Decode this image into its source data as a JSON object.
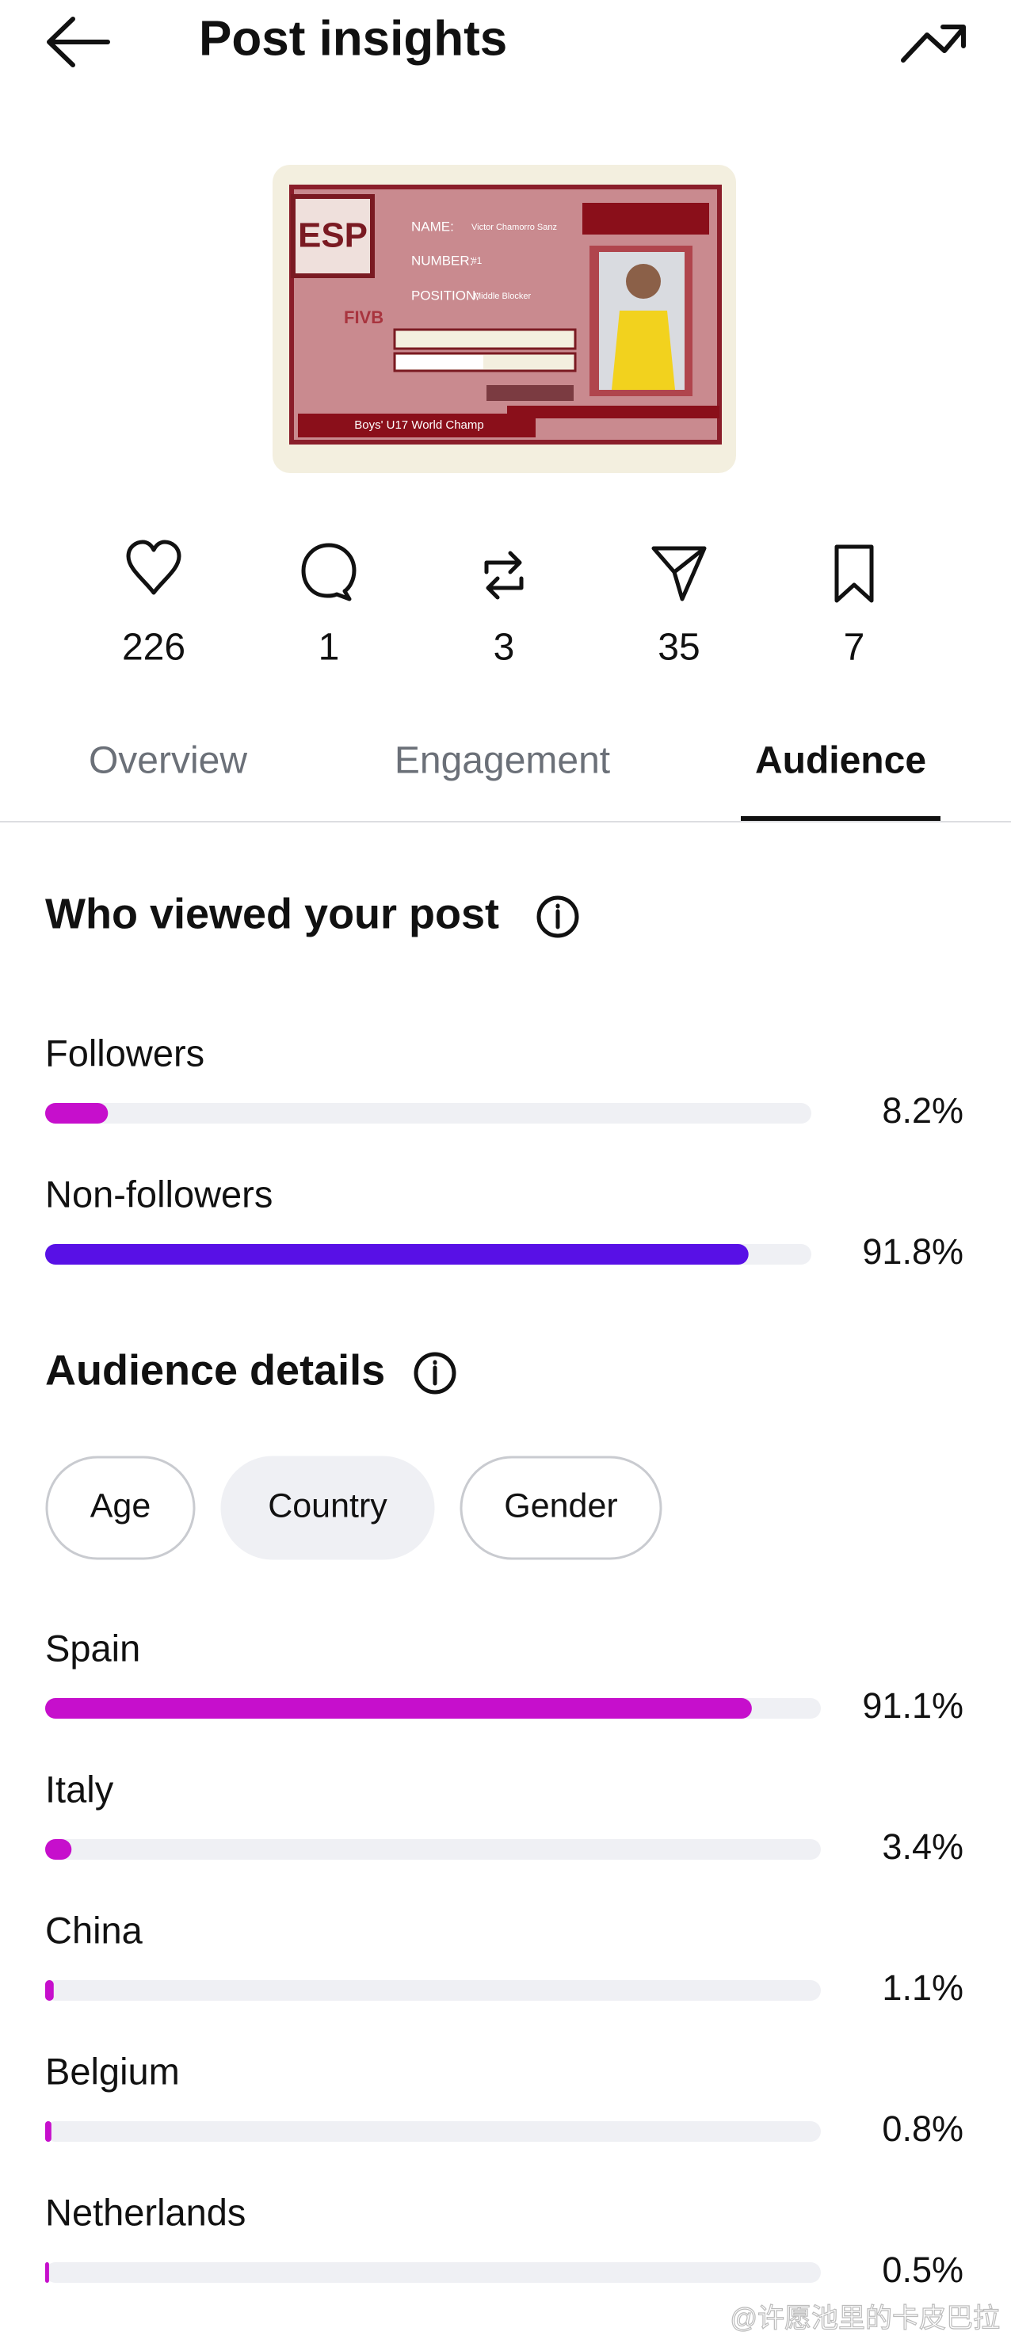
{
  "header": {
    "title": "Post insights"
  },
  "post_card": {
    "badge": "ESP",
    "name_label": "NAME:",
    "name": "Victor Chamorro Sanz",
    "number_label": "NUMBER:",
    "number": "#1",
    "position_label": "POSITION:",
    "position": "Middle Blocker",
    "logo": "FIVB",
    "caption": "Boys' U17 World Champ"
  },
  "stats": [
    226,
    1,
    3,
    35,
    7
  ],
  "tabs": [
    "Overview",
    "Engagement",
    "Audience"
  ],
  "active_tab": 2,
  "viewers": {
    "title": "Who viewed your post",
    "xlim": [
      0,
      100
    ],
    "rows": [
      {
        "name": "Followers",
        "value": 8.2,
        "label": "8.2%",
        "color": "#c60fcc"
      },
      {
        "name": "Non-followers",
        "value": 91.8,
        "label": "91.8%",
        "color": "#5810e6"
      }
    ]
  },
  "audience_details": {
    "title": "Audience details",
    "filters": [
      "Age",
      "Country",
      "Gender"
    ],
    "selected_filter": 1,
    "color": "#c60fcc",
    "xlim": [
      0,
      100
    ],
    "rows": [
      {
        "name": "Spain",
        "value": 91.1,
        "label": "91.1%"
      },
      {
        "name": "Italy",
        "value": 3.4,
        "label": "3.4%"
      },
      {
        "name": "China",
        "value": 1.1,
        "label": "1.1%"
      },
      {
        "name": "Belgium",
        "value": 0.8,
        "label": "0.8%"
      },
      {
        "name": "Netherlands",
        "value": 0.5,
        "label": "0.5%"
      }
    ]
  },
  "watermark": "@许愿池里的卡皮巴拉"
}
